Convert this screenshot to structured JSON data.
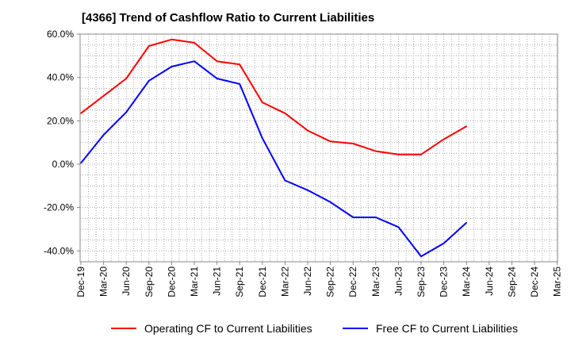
{
  "chart_data": {
    "type": "line",
    "title": "[4366]  Trend of Cashflow Ratio to Current Liabilities",
    "xlabel": "",
    "ylabel": "",
    "categories": [
      "Dec-19",
      "Mar-20",
      "Jun-20",
      "Sep-20",
      "Dec-20",
      "Mar-21",
      "Jun-21",
      "Sep-21",
      "Dec-21",
      "Mar-22",
      "Jun-22",
      "Sep-22",
      "Dec-22",
      "Mar-23",
      "Jun-23",
      "Sep-23",
      "Dec-23",
      "Mar-24",
      "Jun-24",
      "Sep-24",
      "Dec-24",
      "Mar-25"
    ],
    "ylim": [
      -45,
      60
    ],
    "yticks": [
      60,
      40,
      20,
      0,
      -20,
      -40
    ],
    "ytick_labels": [
      "60.0%",
      "40.0%",
      "20.0%",
      "0.0%",
      "-20.0%",
      "-40.0%"
    ],
    "grid": true,
    "legend_position": "bottom",
    "series": [
      {
        "name": "Operating CF to Current Liabilities",
        "color": "#ff0000",
        "values": [
          23.5,
          31.5,
          39.5,
          54.5,
          57.5,
          56.0,
          47.5,
          46.0,
          28.5,
          23.5,
          15.5,
          10.5,
          9.5,
          6.0,
          4.5,
          4.5,
          11.5,
          17.5,
          null,
          null,
          null,
          null
        ]
      },
      {
        "name": "Free CF to Current Liabilities",
        "color": "#0000ff",
        "values": [
          0.5,
          13.5,
          24.0,
          38.5,
          45.0,
          47.5,
          39.5,
          37.0,
          12.0,
          -7.5,
          -12.0,
          -17.5,
          -24.5,
          -24.5,
          -29.0,
          -42.5,
          -36.5,
          -27.0,
          null,
          null,
          null,
          null
        ]
      }
    ]
  }
}
